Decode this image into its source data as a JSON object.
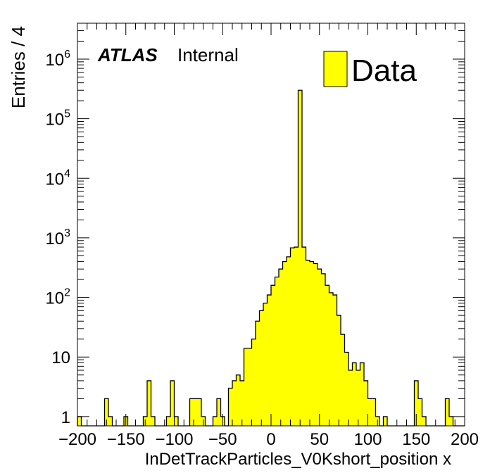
{
  "chart_data": {
    "type": "bar",
    "xlabel": "InDetTrackParticles_V0Kshort_position x",
    "ylabel": "Entries / 4",
    "xlim": [
      -200,
      200
    ],
    "ylim": [
      0.7,
      4000000
    ],
    "yscale": "log",
    "bin_width": 4,
    "xticks": [
      {
        "value": -200,
        "label": "−200"
      },
      {
        "value": -150,
        "label": "−150"
      },
      {
        "value": -100,
        "label": "−100"
      },
      {
        "value": -50,
        "label": "−50"
      },
      {
        "value": 0,
        "label": "0"
      },
      {
        "value": 50,
        "label": "50"
      },
      {
        "value": 100,
        "label": "100"
      },
      {
        "value": 150,
        "label": "150"
      },
      {
        "value": 200,
        "label": "200"
      }
    ],
    "yticks": [
      {
        "value": 1,
        "base": "1",
        "exp": ""
      },
      {
        "value": 10,
        "base": "10",
        "exp": ""
      },
      {
        "value": 100,
        "base": "10",
        "exp": "2"
      },
      {
        "value": 1000,
        "base": "10",
        "exp": "3"
      },
      {
        "value": 10000,
        "base": "10",
        "exp": "4"
      },
      {
        "value": 100000,
        "base": "10",
        "exp": "5"
      },
      {
        "value": 1000000,
        "base": "10",
        "exp": "6"
      }
    ],
    "series": [
      {
        "name": "Data",
        "color": "#ffff00",
        "edge_color": "#000000",
        "values": [
          1,
          0,
          0,
          0,
          0,
          0,
          0,
          2,
          1,
          0,
          0,
          0,
          1,
          0,
          0,
          0,
          0,
          1,
          4,
          1,
          0,
          0,
          0,
          1,
          4,
          1,
          0,
          0,
          0,
          2,
          2,
          2,
          1,
          0,
          0,
          1,
          2,
          1,
          0,
          3,
          4,
          5,
          4,
          14,
          14,
          20,
          40,
          60,
          80,
          110,
          160,
          220,
          300,
          400,
          480,
          680,
          700,
          300000,
          700,
          420,
          400,
          370,
          300,
          250,
          160,
          120,
          110,
          50,
          24,
          12,
          6,
          8,
          6,
          8,
          4,
          2,
          2,
          1,
          0,
          1,
          0,
          0,
          0,
          0,
          0,
          0,
          0,
          4,
          2,
          1,
          0,
          0,
          0,
          0,
          0,
          2,
          1,
          0,
          0,
          0
        ]
      }
    ],
    "annotations": {
      "experiment": "ATLAS",
      "status": "Internal"
    },
    "legend_placement": "top-right",
    "grid": false
  }
}
